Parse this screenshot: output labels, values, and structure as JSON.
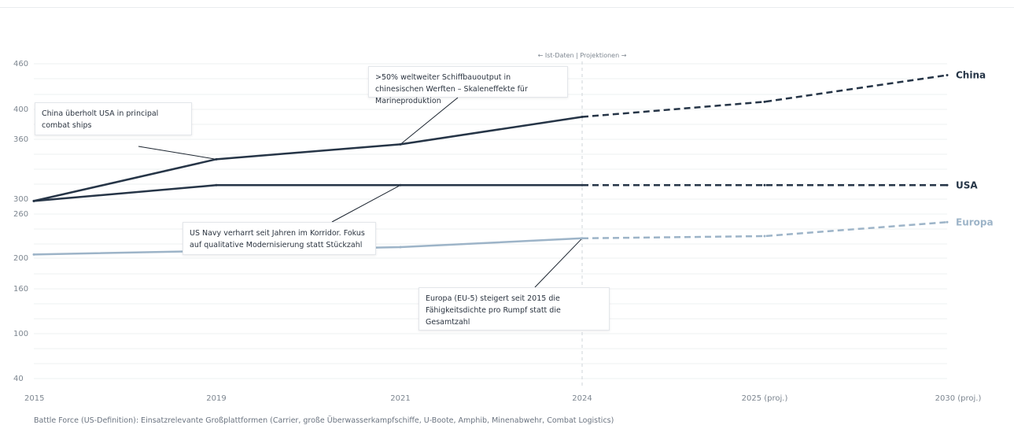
{
  "chart_data": {
    "type": "line",
    "x": [
      "2015",
      "2019",
      "2021",
      "2024",
      "2025 (proj.)",
      "2030 (proj.)"
    ],
    "projection_start_index": 3,
    "yticks": [
      460,
      400,
      360,
      300,
      260,
      200,
      160,
      100,
      40
    ],
    "series": [
      {
        "name": "China",
        "values": [
          295,
          340,
          355,
          390,
          410,
          445
        ],
        "color": "#263547",
        "label_color": "#263547"
      },
      {
        "name": "USA",
        "values": [
          295,
          314,
          314,
          314,
          314,
          314
        ],
        "color": "#263547",
        "label_color": "#263547"
      },
      {
        "name": "Europa",
        "values": [
          205,
          210,
          215,
          227,
          230,
          249
        ],
        "color": "#9db4c8",
        "label_color": "#9db4c8"
      }
    ],
    "divider_label": "← Ist-Daten | Projektionen →",
    "grid": true,
    "line_style": {
      "actual": "solid",
      "projection": "dashed"
    }
  },
  "annotations": [
    {
      "id": "china-overtakes",
      "text": "China überholt USA in principal combat ships"
    },
    {
      "id": "shipbuilding",
      "text": ">50% weltweiter Schiffbauoutput in chinesischen Werften – Skaleneffekte für Marineproduktion"
    },
    {
      "id": "us-navy",
      "text": "US Navy verharrt seit Jahren im Korridor. Fokus auf qualitative Modernisierung statt Stückzahl"
    },
    {
      "id": "europe",
      "text": "Europa (EU-5) steigert seit 2015 die Fähigkeitsdichte pro Rumpf statt die Gesamtzahl"
    }
  ],
  "footnote": "Battle Force (US-Definition): Einsatzrelevante Großplattformen (Carrier, große Überwasserkampfschiffe, U-Boote, Amphib, Minenabwehr, Combat Logistics)"
}
